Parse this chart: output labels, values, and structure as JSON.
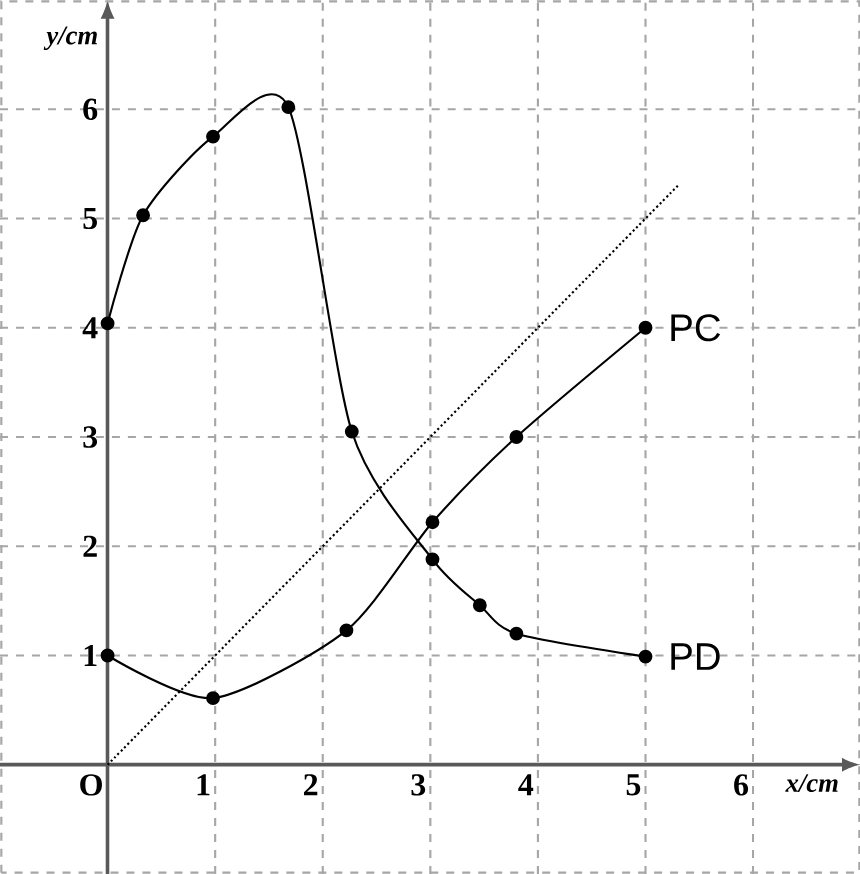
{
  "chart_data": {
    "type": "line",
    "xlabel": "x/cm",
    "ylabel": "y/cm",
    "xlim": [
      -1,
      7
    ],
    "ylim": [
      -1,
      7
    ],
    "xticks": [
      {
        "value": 0,
        "label": "O"
      },
      1,
      2,
      3,
      4,
      5,
      6
    ],
    "yticks": [
      1,
      2,
      3,
      4,
      5,
      6
    ],
    "grid": true,
    "marker": "circle",
    "line_style": "solid",
    "series": [
      {
        "name": "PC",
        "color": "#000000",
        "x": [
          0,
          0.98,
          2.22,
          3.02,
          3.8,
          5
        ],
        "values": [
          1,
          0.61,
          1.23,
          2.22,
          3.0,
          4.0
        ]
      },
      {
        "name": "PD",
        "color": "#000000",
        "x": [
          0,
          0.33,
          0.98,
          1.68,
          2.27,
          3.02,
          3.46,
          3.8,
          5
        ],
        "values": [
          4.04,
          5.03,
          5.75,
          6.02,
          3.05,
          1.88,
          1.46,
          1.2,
          0.99
        ]
      },
      {
        "color": "#000000",
        "marker": "none",
        "line_style": "dotted",
        "x": [
          0,
          5.3
        ],
        "values": [
          0,
          5.3
        ]
      }
    ]
  }
}
